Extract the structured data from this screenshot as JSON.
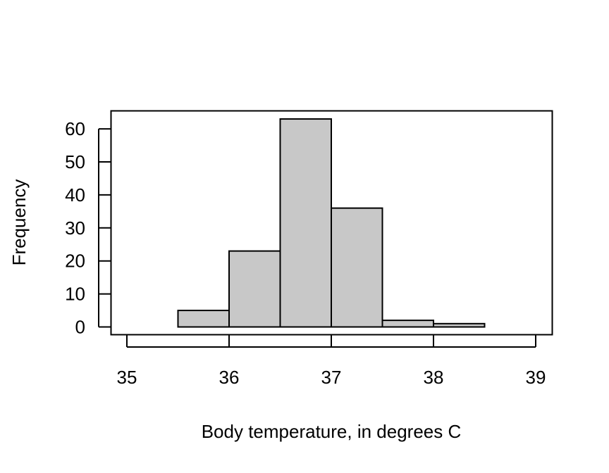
{
  "chart_data": {
    "type": "bar",
    "title": "",
    "xlabel": "Body temperature, in degrees C",
    "ylabel": "Frequency",
    "bins": [
      {
        "x0": 35.0,
        "x1": 35.5,
        "value": 0
      },
      {
        "x0": 35.5,
        "x1": 36.0,
        "value": 5
      },
      {
        "x0": 36.0,
        "x1": 36.5,
        "value": 23
      },
      {
        "x0": 36.5,
        "x1": 37.0,
        "value": 63
      },
      {
        "x0": 37.0,
        "x1": 37.5,
        "value": 36
      },
      {
        "x0": 37.5,
        "x1": 38.0,
        "value": 2
      },
      {
        "x0": 38.0,
        "x1": 38.5,
        "value": 1
      },
      {
        "x0": 38.5,
        "x1": 39.0,
        "value": 0
      }
    ],
    "xlim": [
      35,
      39
    ],
    "ylim": [
      0,
      63
    ],
    "xticks": [
      "35",
      "36",
      "37",
      "38",
      "39"
    ],
    "yticks": [
      "0",
      "10",
      "20",
      "30",
      "40",
      "50",
      "60"
    ],
    "grid": false,
    "legend": "none",
    "bar_fill": "#c8c8c8",
    "bar_stroke": "#000000"
  }
}
